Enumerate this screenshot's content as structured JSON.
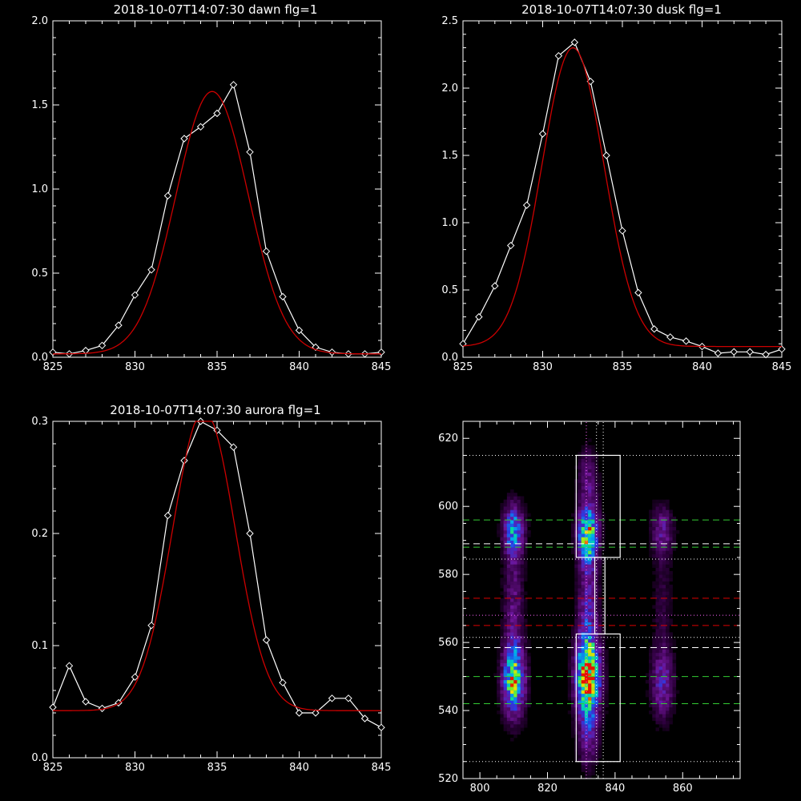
{
  "chart_data": [
    {
      "type": "line",
      "title": "2018-10-07T14:07:30 dawn flg=1",
      "xlim": [
        825,
        845
      ],
      "ylim": [
        0,
        2.0
      ],
      "xticks": [
        "825",
        "830",
        "835",
        "840",
        "845"
      ],
      "yticks": [
        "0.0",
        "0.5",
        "1.0",
        "1.5",
        "2.0"
      ],
      "series": [
        {
          "color": "#ffffff",
          "marker": "diamond",
          "x": [
            825,
            826,
            827,
            828,
            829,
            830,
            831,
            832,
            833,
            834,
            835,
            836,
            837,
            838,
            839,
            840,
            841,
            842,
            843,
            844,
            845
          ],
          "y": [
            0.03,
            0.02,
            0.04,
            0.07,
            0.19,
            0.37,
            0.52,
            0.96,
            1.3,
            1.37,
            1.45,
            1.62,
            1.22,
            0.63,
            0.36,
            0.16,
            0.06,
            0.03,
            0.02,
            0.02,
            0.03
          ]
        },
        {
          "color": "#cc0000",
          "fit": "gaussian",
          "amp": 1.56,
          "center": 834.7,
          "sigma": 2.2,
          "base": 0.02
        }
      ]
    },
    {
      "type": "line",
      "title": "2018-10-07T14:07:30 dusk flg=1",
      "xlim": [
        825,
        845
      ],
      "ylim": [
        0,
        2.5
      ],
      "xticks": [
        "825",
        "830",
        "835",
        "840",
        "845"
      ],
      "yticks": [
        "0.0",
        "0.5",
        "1.0",
        "1.5",
        "2.0",
        "2.5"
      ],
      "series": [
        {
          "color": "#ffffff",
          "marker": "diamond",
          "x": [
            825,
            826,
            827,
            828,
            829,
            830,
            831,
            832,
            833,
            834,
            835,
            836,
            837,
            838,
            839,
            840,
            841,
            842,
            843,
            844,
            845
          ],
          "y": [
            0.1,
            0.3,
            0.53,
            0.83,
            1.13,
            1.66,
            2.24,
            2.34,
            2.05,
            1.5,
            0.94,
            0.48,
            0.21,
            0.15,
            0.12,
            0.08,
            0.03,
            0.04,
            0.04,
            0.02,
            0.06
          ]
        },
        {
          "color": "#cc0000",
          "fit": "gaussian",
          "amp": 2.22,
          "center": 831.9,
          "sigma": 1.95,
          "base": 0.08
        }
      ]
    },
    {
      "type": "line",
      "title": "2018-10-07T14:07:30 aurora flg=1",
      "xlim": [
        825,
        845
      ],
      "ylim": [
        0,
        0.3
      ],
      "xticks": [
        "825",
        "830",
        "835",
        "840",
        "845"
      ],
      "yticks": [
        "0.0",
        "0.1",
        "0.2",
        "0.3"
      ],
      "series": [
        {
          "color": "#ffffff",
          "marker": "diamond",
          "x": [
            825,
            826,
            827,
            828,
            829,
            830,
            831,
            832,
            833,
            834,
            835,
            836,
            837,
            838,
            839,
            840,
            841,
            842,
            843,
            844,
            845
          ],
          "y": [
            0.045,
            0.082,
            0.05,
            0.044,
            0.049,
            0.072,
            0.118,
            0.216,
            0.265,
            0.3,
            0.292,
            0.277,
            0.2,
            0.105,
            0.067,
            0.04,
            0.04,
            0.053,
            0.053,
            0.035,
            0.027
          ]
        },
        {
          "color": "#cc0000",
          "fit": "gaussian",
          "amp": 0.268,
          "center": 834.2,
          "sigma": 1.9,
          "base": 0.042
        }
      ]
    },
    {
      "type": "heatmap",
      "xlim": [
        795,
        877
      ],
      "ylim": [
        520,
        625
      ],
      "xticks": [
        800,
        820,
        840,
        860
      ],
      "yticks": [
        520,
        540,
        560,
        580,
        600,
        620
      ],
      "blobs": [
        {
          "x": 810,
          "y": 593,
          "sx": 2.0,
          "sy": 5.0,
          "amp": 0.55
        },
        {
          "x": 810,
          "y": 549,
          "sx": 2.2,
          "sy": 7.0,
          "amp": 0.75
        },
        {
          "x": 810,
          "y": 572,
          "sx": 2.0,
          "sy": 12.0,
          "amp": 0.22
        },
        {
          "x": 832,
          "y": 592,
          "sx": 2.0,
          "sy": 5.5,
          "amp": 0.78
        },
        {
          "x": 832,
          "y": 550,
          "sx": 2.4,
          "sy": 8.0,
          "amp": 1.0
        },
        {
          "x": 832,
          "y": 572,
          "sx": 2.0,
          "sy": 12.0,
          "amp": 0.3
        },
        {
          "x": 832,
          "y": 608,
          "sx": 2.0,
          "sy": 6.0,
          "amp": 0.22
        },
        {
          "x": 832,
          "y": 532,
          "sx": 2.0,
          "sy": 6.0,
          "amp": 0.25
        },
        {
          "x": 854,
          "y": 593,
          "sx": 2.2,
          "sy": 5.0,
          "amp": 0.25
        },
        {
          "x": 854,
          "y": 548,
          "sx": 2.2,
          "sy": 7.0,
          "amp": 0.32
        },
        {
          "x": 854,
          "y": 572,
          "sx": 2.0,
          "sy": 12.0,
          "amp": 0.1
        }
      ],
      "colors": {
        "axis": "#ffffff",
        "dotted_magenta": "#ff66ff",
        "green": "#33cc33",
        "red": "#dd0000",
        "white": "#ffffff"
      },
      "dotted_white_hlines": [
        525,
        561.5,
        584.5,
        615
      ],
      "dotted_white_vlines": [
        834.5,
        836.5
      ],
      "dotted_magenta_hlines": [
        568
      ],
      "dotted_magenta_vlines": [
        831.5
      ],
      "green_dashed_hlines": [
        542,
        550,
        588,
        596
      ],
      "red_dashed_hlines": [
        565,
        573
      ],
      "white_dashed_hlines": [
        558.5,
        589
      ],
      "boxes": [
        {
          "x0": 828.5,
          "x1": 841.5,
          "y0": 525,
          "y1": 562.5
        },
        {
          "x0": 828.5,
          "x1": 841.5,
          "y0": 585,
          "y1": 615
        },
        {
          "x0": 834.0,
          "x1": 837.0,
          "y0": 562.5,
          "y1": 585
        }
      ]
    }
  ]
}
